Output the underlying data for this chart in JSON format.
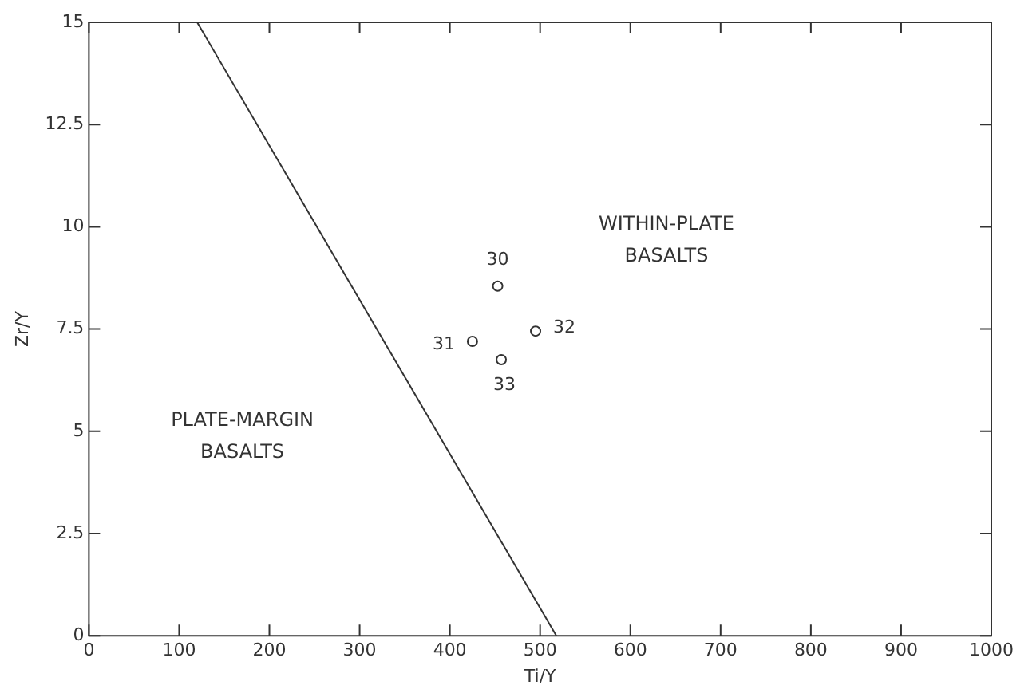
{
  "chart_data": {
    "type": "scatter",
    "xlabel": "Ti/Y",
    "ylabel": "Zr/Y",
    "xlim": [
      0,
      1000
    ],
    "xticks": [
      0,
      100,
      200,
      300,
      400,
      500,
      600,
      700,
      800,
      900,
      1000
    ],
    "ylim": [
      0,
      15
    ],
    "yticks": [
      0,
      2.5,
      5,
      7.5,
      10,
      12.5,
      15
    ],
    "grid": false,
    "legend": false,
    "series": [
      {
        "color": "#333333",
        "marker": "circle",
        "x": [
          453,
          425,
          495,
          457
        ],
        "values": [
          8.55,
          7.2,
          7.45,
          6.75
        ]
      },
      {
        "type": "line",
        "color": "#333333",
        "x": [
          120,
          518
        ],
        "values": [
          15,
          0
        ],
        "line_style": "solid"
      }
    ],
    "annotations": [
      {
        "text": "30",
        "x": 453,
        "y": 8.55
      },
      {
        "text": "31",
        "x": 425,
        "y": 7.2
      },
      {
        "text": "32",
        "x": 495,
        "y": 7.45
      },
      {
        "text": "33",
        "x": 457,
        "y": 6.75
      },
      "WITHIN-PLATE\nBASALTS",
      "PLATE-MARGIN\nBASALTS"
    ]
  }
}
